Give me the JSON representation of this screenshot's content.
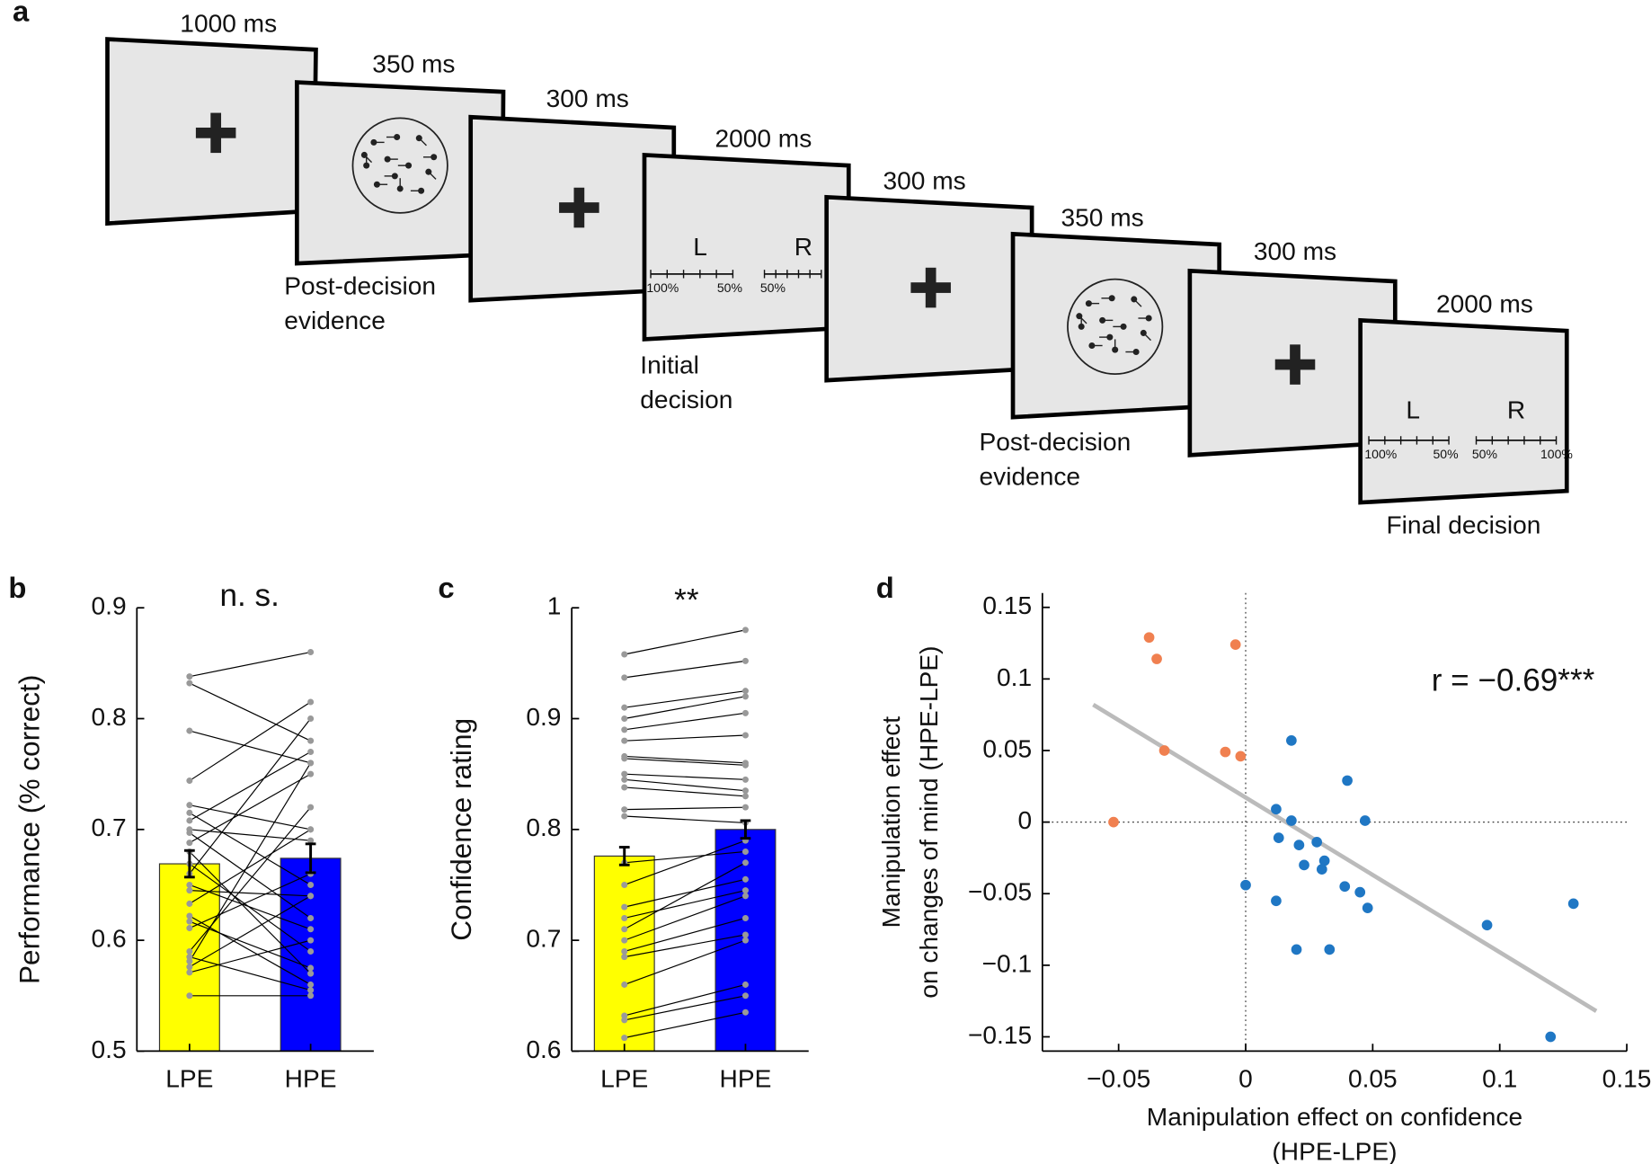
{
  "panel_a": {
    "label": "a",
    "screens": [
      {
        "duration": "1000 ms"
      },
      {
        "duration": "350 ms",
        "caption": [
          "Post-decision",
          "evidence"
        ]
      },
      {
        "duration": "300 ms"
      },
      {
        "duration": "2000 ms",
        "caption": [
          "Initial",
          "decision"
        ],
        "scale": {
          "left": "L",
          "right": "R",
          "left_ticks": [
            "100%",
            "50%"
          ],
          "right_ticks": [
            "50%"
          ]
        }
      },
      {
        "duration": "300 ms"
      },
      {
        "duration": "350 ms",
        "caption": [
          "Post-decision",
          "evidence"
        ]
      },
      {
        "duration": "300 ms"
      },
      {
        "duration": "2000 ms",
        "caption": [
          "Final decision"
        ],
        "scale": {
          "left": "L",
          "right": "R",
          "left_ticks": [
            "100%",
            "50%"
          ],
          "right_ticks": [
            "50%",
            "100%"
          ]
        }
      }
    ]
  },
  "chart_data": [
    {
      "type": "bar",
      "label": "b",
      "title": "n. s.",
      "ylabel": "Performance (% correct)",
      "categories": [
        "LPE",
        "HPE"
      ],
      "values": [
        0.669,
        0.674
      ],
      "errors": [
        0.012,
        0.013
      ],
      "colors": [
        "#ffff00",
        "#0000ff"
      ],
      "ylim": [
        0.5,
        0.9
      ],
      "yticks": [
        0.5,
        0.6,
        0.7,
        0.8,
        0.9
      ],
      "point_color": "#999999",
      "paired_values": [
        [
          0.838,
          0.832,
          0.789,
          0.744,
          0.722,
          0.715,
          0.708,
          0.697,
          0.688,
          0.669,
          0.66,
          0.645,
          0.633,
          0.622,
          0.617,
          0.611,
          0.585,
          0.581,
          0.576,
          0.571,
          0.55,
          0.7,
          0.68,
          0.65,
          0.59
        ],
        [
          0.86,
          0.78,
          0.76,
          0.815,
          0.7,
          0.65,
          0.77,
          0.62,
          0.75,
          0.59,
          0.8,
          0.64,
          0.7,
          0.56,
          0.575,
          0.66,
          0.555,
          0.76,
          0.64,
          0.6,
          0.55,
          0.69,
          0.57,
          0.61,
          0.72
        ]
      ]
    },
    {
      "type": "bar",
      "label": "c",
      "title": "**",
      "ylabel": "Confidence rating",
      "categories": [
        "LPE",
        "HPE"
      ],
      "values": [
        0.776,
        0.8
      ],
      "errors": [
        0.008,
        0.008
      ],
      "colors": [
        "#ffff00",
        "#0000ff"
      ],
      "ylim": [
        0.6,
        1
      ],
      "yticks": [
        0.6,
        0.7,
        0.8,
        0.9,
        1
      ],
      "point_color": "#999999",
      "paired_values": [
        [
          0.958,
          0.937,
          0.91,
          0.9,
          0.89,
          0.88,
          0.866,
          0.864,
          0.85,
          0.845,
          0.838,
          0.818,
          0.812,
          0.77,
          0.75,
          0.73,
          0.72,
          0.71,
          0.7,
          0.69,
          0.685,
          0.66,
          0.632,
          0.628,
          0.612
        ],
        [
          0.98,
          0.952,
          0.925,
          0.92,
          0.905,
          0.885,
          0.86,
          0.858,
          0.845,
          0.835,
          0.83,
          0.82,
          0.806,
          0.78,
          0.79,
          0.755,
          0.745,
          0.77,
          0.74,
          0.72,
          0.705,
          0.7,
          0.66,
          0.65,
          0.635
        ]
      ]
    },
    {
      "type": "scatter",
      "label": "d",
      "xlabel": [
        "Manipulation effect on confidence",
        "(HPE-LPE)"
      ],
      "ylabel": [
        "Manipulation effect",
        "on changes of mind (HPE-LPE)"
      ],
      "annotation": "r = −0.69***",
      "xlim": [
        -0.08,
        0.15
      ],
      "ylim": [
        -0.16,
        0.16
      ],
      "xticks": [
        {
          "value": -0.05,
          "label": "−0.05"
        },
        0,
        0.05,
        0.1,
        0.15
      ],
      "yticks": [
        {
          "value": -0.15,
          "label": "−0.15"
        },
        {
          "value": -0.1,
          "label": "−0.1"
        },
        {
          "value": -0.05,
          "label": "−0.05"
        },
        0,
        0.05,
        0.1,
        0.15
      ],
      "series": [
        {
          "color": "#f08050",
          "x": [
            -0.038,
            -0.035,
            -0.004,
            -0.032,
            -0.008,
            -0.002,
            -0.052
          ],
          "y": [
            0.129,
            0.114,
            0.124,
            0.05,
            0.049,
            0.046,
            0
          ]
        },
        {
          "color": "#1f77c4",
          "x": [
            0.018,
            0.04,
            0.012,
            0.018,
            0.047,
            0.013,
            0.021,
            0.028,
            0.023,
            0.031,
            0.03,
            0,
            0.039,
            0.045,
            0.048,
            0.012,
            0.02,
            0.033,
            0.095,
            0.129,
            0.12
          ],
          "y": [
            0.057,
            0.029,
            0.009,
            0.001,
            0.001,
            -0.011,
            -0.016,
            -0.014,
            -0.03,
            -0.027,
            -0.033,
            -0.044,
            -0.045,
            -0.049,
            -0.06,
            -0.055,
            -0.089,
            -0.089,
            -0.072,
            -0.057,
            -0.15
          ]
        }
      ],
      "fit_line": {
        "color": "#bbbbbb",
        "x": [
          -0.06,
          0.138
        ],
        "y": [
          0.082,
          -0.132
        ]
      }
    }
  ]
}
